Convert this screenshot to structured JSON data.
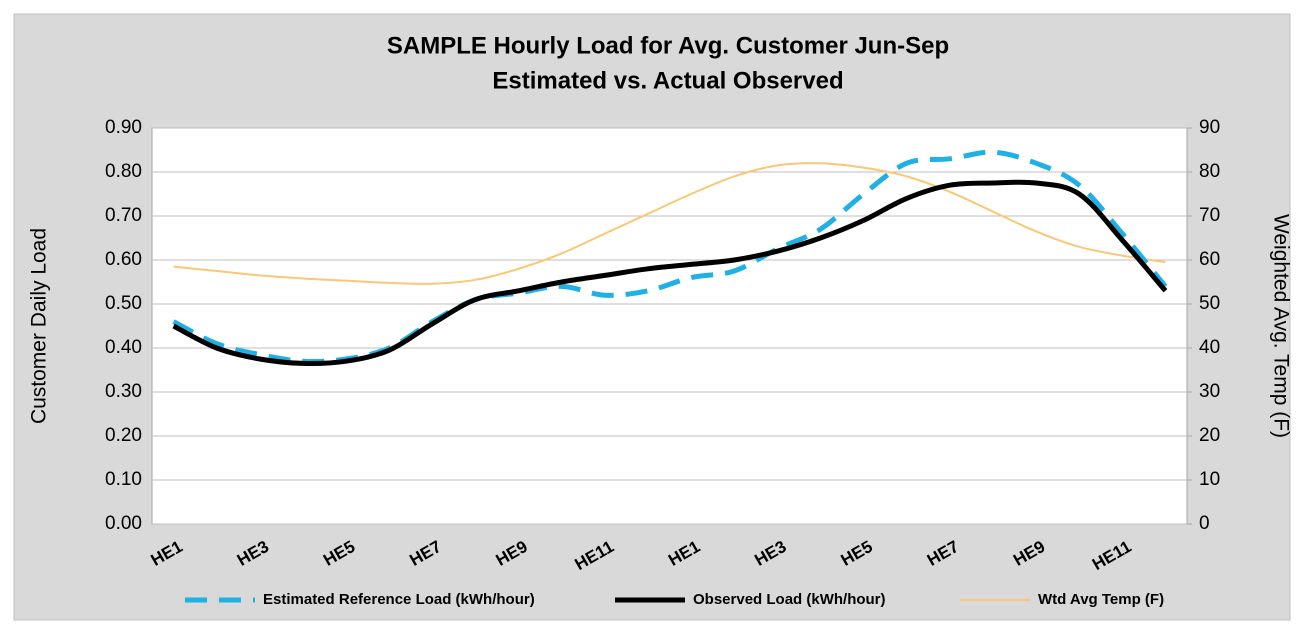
{
  "chart_data": {
    "type": "line",
    "title": [
      "SAMPLE Hourly Load for Avg. Customer Jun-Sep",
      "Estimated vs. Actual Observed"
    ],
    "y_label": "Customer Daily Load",
    "y2_label": "Weighted Avg. Temp (F)",
    "categories": [
      "HE1",
      null,
      "HE3",
      null,
      "HE5",
      null,
      "HE7",
      null,
      "HE9",
      null,
      "HE11",
      null,
      "HE1",
      null,
      "HE3",
      null,
      "HE5",
      null,
      "HE7",
      null,
      "HE9",
      null,
      "HE11",
      null
    ],
    "series": [
      {
        "name": "Estimated Reference Load (kWh/hour)",
        "color": "#1fb0e6",
        "style": "dashed",
        "values": [
          0.46,
          0.41,
          0.385,
          0.37,
          0.375,
          0.4,
          0.46,
          0.51,
          0.525,
          0.54,
          0.52,
          0.53,
          0.56,
          0.575,
          0.625,
          0.67,
          0.75,
          0.82,
          0.83,
          0.845,
          0.82,
          0.77,
          0.66,
          0.54
        ]
      },
      {
        "name": "Observed Load (kWh/hour)",
        "color": "#000000",
        "style": "solid",
        "values": [
          0.45,
          0.4,
          0.375,
          0.365,
          0.37,
          0.395,
          0.455,
          0.51,
          0.53,
          0.55,
          0.565,
          0.58,
          0.59,
          0.6,
          0.62,
          0.65,
          0.69,
          0.74,
          0.77,
          0.775,
          0.775,
          0.75,
          0.645,
          0.53
        ]
      },
      {
        "name": "Wtd Avg Temp (F)",
        "color": "#fac775",
        "style": "solid",
        "axis": "y2",
        "values": [
          58.5,
          57.5,
          56.5,
          55.8,
          55.3,
          54.8,
          54.6,
          55.5,
          58,
          61.5,
          66,
          70.5,
          75,
          79,
          81.5,
          82,
          81,
          79,
          75.5,
          71,
          66.5,
          63,
          61,
          59.5
        ]
      }
    ],
    "ylim": [
      0,
      0.9
    ],
    "yticks": [
      {
        "value": 0,
        "label": "0.00"
      },
      {
        "value": 0.1,
        "label": "0.10"
      },
      {
        "value": 0.2,
        "label": "0.20"
      },
      {
        "value": 0.3,
        "label": "0.30"
      },
      {
        "value": 0.4,
        "label": "0.40"
      },
      {
        "value": 0.5,
        "label": "0.50"
      },
      {
        "value": 0.6,
        "label": "0.60"
      },
      {
        "value": 0.7,
        "label": "0.70"
      },
      {
        "value": 0.8,
        "label": "0.80"
      },
      {
        "value": 0.9,
        "label": "0.90"
      }
    ],
    "y2lim": [
      0,
      90
    ],
    "y2ticks": [
      0,
      10,
      20,
      30,
      40,
      50,
      60,
      70,
      80,
      90
    ],
    "grid": true,
    "legend": "bottom"
  }
}
